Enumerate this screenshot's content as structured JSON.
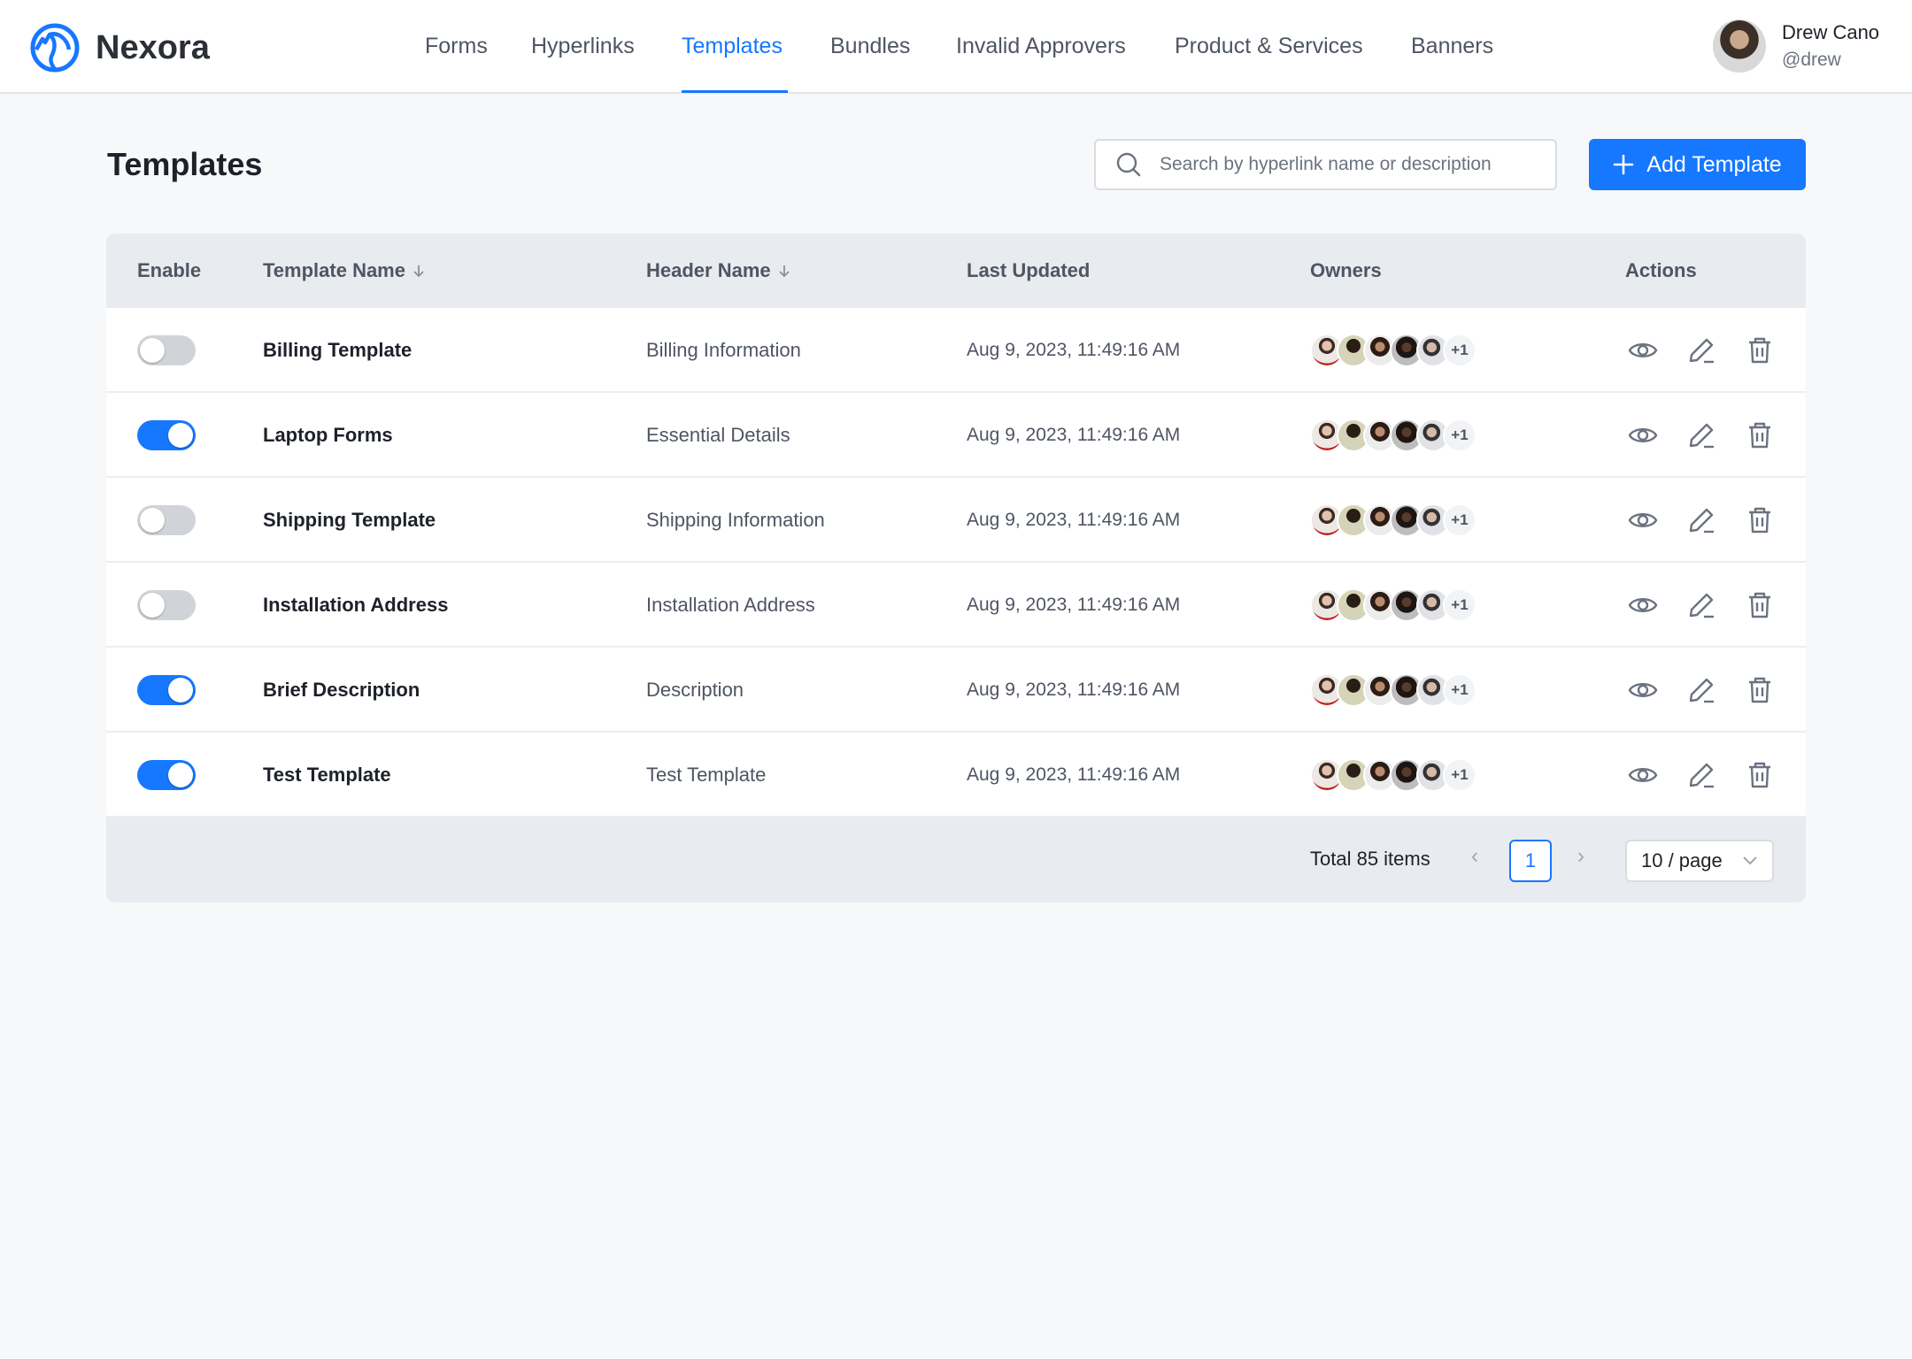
{
  "brand": {
    "name": "Nexora",
    "color": "#1677ff"
  },
  "nav": [
    {
      "label": "Forms"
    },
    {
      "label": "Hyperlinks"
    },
    {
      "label": "Templates",
      "active": true
    },
    {
      "label": "Bundles"
    },
    {
      "label": "Invalid Approvers"
    },
    {
      "label": "Product & Services"
    },
    {
      "label": "Banners"
    }
  ],
  "user": {
    "name": "Drew Cano",
    "handle": "@drew"
  },
  "page": {
    "title": "Templates"
  },
  "search": {
    "placeholder": "Search by hyperlink name or description",
    "value": ""
  },
  "add_button": {
    "label": "Add Template",
    "icon": "plus-icon"
  },
  "table": {
    "columns": [
      "Enable",
      "Template Name",
      "Header Name",
      "Last Updated",
      "Owners",
      "Actions"
    ],
    "rows": [
      {
        "enabled": false,
        "name": "Billing Template",
        "header": "Billing Information",
        "updated": "Aug 9, 2023, 11:49:16 AM",
        "owners_more": "+1"
      },
      {
        "enabled": true,
        "name": "Laptop Forms",
        "header": "Essential Details",
        "updated": "Aug 9, 2023, 11:49:16 AM",
        "owners_more": "+1"
      },
      {
        "enabled": false,
        "name": "Shipping Template",
        "header": "Shipping Information",
        "updated": "Aug 9, 2023, 11:49:16 AM",
        "owners_more": "+1"
      },
      {
        "enabled": false,
        "name": "Installation Address",
        "header": "Installation Address",
        "updated": "Aug 9, 2023, 11:49:16 AM",
        "owners_more": "+1"
      },
      {
        "enabled": true,
        "name": "Brief Description",
        "header": "Description",
        "updated": "Aug 9, 2023, 11:49:16 AM",
        "owners_more": "+1"
      },
      {
        "enabled": true,
        "name": "Test Template",
        "header": "Test Template",
        "updated": "Aug 9, 2023, 11:49:16 AM",
        "owners_more": "+1"
      }
    ],
    "actions": [
      "eye-icon",
      "pencil-icon",
      "trash-icon"
    ]
  },
  "pagination": {
    "total": "Total 85 items",
    "current": "1",
    "page_size": "10 / page"
  }
}
